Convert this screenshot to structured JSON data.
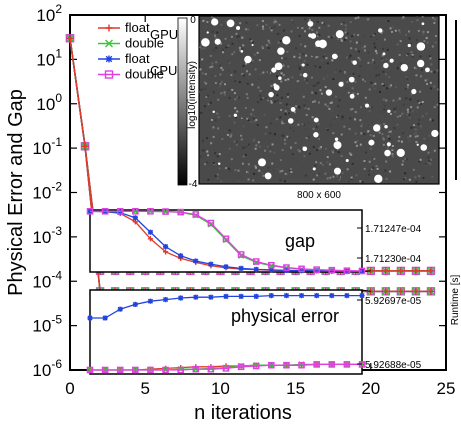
{
  "chart_data": {
    "type": "line",
    "xlabel": "n iterations",
    "ylabel": "Physical Error and Gap",
    "xlim": [
      0,
      25
    ],
    "ylim_log10": [
      -6,
      2
    ],
    "y_scale": "log",
    "x_ticks": [
      "0",
      "5",
      "10",
      "15",
      "20",
      "25"
    ],
    "y_ticks": [
      {
        "base": "10",
        "exp": "2"
      },
      {
        "base": "10",
        "exp": "1"
      },
      {
        "base": "10",
        "exp": "0"
      },
      {
        "base": "10",
        "exp": "-1"
      },
      {
        "base": "10",
        "exp": "-2"
      },
      {
        "base": "10",
        "exp": "-3"
      },
      {
        "base": "10",
        "exp": "-4"
      },
      {
        "base": "10",
        "exp": "-5"
      },
      {
        "base": "10",
        "exp": "-6"
      }
    ],
    "legend": {
      "group_labels": [
        "GPU",
        "CPU"
      ],
      "entries": [
        {
          "label": "float",
          "group": "GPU",
          "color": "#e0392b",
          "marker": "plus"
        },
        {
          "label": "double",
          "group": "GPU",
          "color": "#39c43c",
          "marker": "cross"
        },
        {
          "label": "float",
          "group": "CPU",
          "color": "#2244dd",
          "marker": "star"
        },
        {
          "label": "double",
          "group": "CPU",
          "color": "#e040e0",
          "marker": "square"
        }
      ]
    },
    "series": [
      {
        "metric": "gap",
        "x": [
          0,
          1,
          2,
          3,
          4,
          5,
          6,
          7,
          8,
          9,
          10,
          11,
          12,
          13,
          14,
          15,
          16,
          17,
          18,
          19,
          20,
          21,
          22,
          23,
          24
        ],
        "y": [
          30,
          0.11,
          0.000172,
          0.000171,
          0.000171,
          0.000171,
          0.000171,
          0.000171,
          0.000171,
          0.000171,
          0.000171,
          0.000171,
          0.000171,
          0.000171,
          0.000171,
          0.000171,
          0.000171,
          0.000171,
          0.000171,
          0.000171,
          0.000171,
          0.000171,
          0.000171,
          0.000171,
          0.000171
        ]
      },
      {
        "metric": "physical error",
        "x": [
          0,
          1,
          2,
          3,
          4,
          5,
          6,
          7,
          8,
          9,
          10,
          11,
          12,
          13,
          14,
          15,
          16,
          17,
          18,
          19,
          20,
          21,
          22,
          23,
          24
        ],
        "y": [
          30,
          0.11,
          5.92e-05,
          5.93e-05,
          5.93e-05,
          5.93e-05,
          5.93e-05,
          5.93e-05,
          5.93e-05,
          5.93e-05,
          5.93e-05,
          5.93e-05,
          5.93e-05,
          5.93e-05,
          5.93e-05,
          5.93e-05,
          5.93e-05,
          5.93e-05,
          5.93e-05,
          5.93e-05,
          5.93e-05,
          5.93e-05,
          5.93e-05,
          5.93e-05,
          5.93e-05
        ]
      }
    ],
    "inset_gap": {
      "label": "gap",
      "y_ticks": [
        "1.71247e-04",
        "1.71230e-04"
      ],
      "x": [
        1,
        2,
        3,
        4,
        5,
        6,
        7,
        8,
        9,
        10,
        11,
        12,
        13,
        14,
        15,
        16,
        17,
        18,
        19
      ],
      "series": [
        {
          "legend_index": 0,
          "y": [
            1.71247,
            1.712469,
            1.712462,
            1.71243,
            1.712365,
            1.712315,
            1.71229,
            1.712275,
            1.712262,
            1.712254,
            1.712249,
            1.712247,
            1.712245,
            1.712244,
            1.712243,
            1.712242,
            1.712241,
            1.71224,
            1.71224
          ]
        },
        {
          "legend_index": 1,
          "y": [
            1.71247,
            1.71247,
            1.71247,
            1.71247,
            1.71247,
            1.712469,
            1.712466,
            1.712455,
            1.71242,
            1.71236,
            1.7123,
            1.712275,
            1.712262,
            1.712254,
            1.712249,
            1.712246,
            1.712244,
            1.712242,
            1.712241
          ]
        },
        {
          "legend_index": 2,
          "y": [
            1.71247,
            1.712469,
            1.712465,
            1.712445,
            1.71239,
            1.712335,
            1.7123,
            1.71228,
            1.712268,
            1.712258,
            1.712252,
            1.712248,
            1.712246,
            1.712244,
            1.712243,
            1.712242,
            1.712241,
            1.71224,
            1.71224
          ]
        },
        {
          "legend_index": 3,
          "y": [
            1.71247,
            1.71247,
            1.71247,
            1.71247,
            1.71247,
            1.712469,
            1.712467,
            1.712458,
            1.712425,
            1.712365,
            1.712305,
            1.712278,
            1.712264,
            1.712255,
            1.71225,
            1.712247,
            1.712245,
            1.712243,
            1.712242
          ]
        }
      ]
    },
    "inset_error": {
      "label": "physical error",
      "y_ticks": [
        "5.92697e-05",
        "5.92688e-05"
      ],
      "x": [
        1,
        2,
        3,
        4,
        5,
        6,
        7,
        8,
        9,
        10,
        11,
        12,
        13,
        14,
        15,
        16,
        17,
        18,
        19
      ],
      "series": [
        {
          "legend_index": 0,
          "y": [
            5.92688,
            5.92688,
            5.92688,
            5.92688,
            5.926881,
            5.926882,
            5.926883,
            5.926884,
            5.926884,
            5.926885,
            5.926885,
            5.926886,
            5.926886,
            5.926886,
            5.926886,
            5.926887,
            5.926887,
            5.926887,
            5.926887
          ]
        },
        {
          "legend_index": 1,
          "y": [
            5.92688,
            5.92688,
            5.92688,
            5.92688,
            5.92688,
            5.92688,
            5.926881,
            5.926881,
            5.926882,
            5.926883,
            5.926885,
            5.926886,
            5.926886,
            5.926886,
            5.926887,
            5.926887,
            5.926887,
            5.926887,
            5.926887
          ]
        },
        {
          "legend_index": 2,
          "y": [
            5.926945,
            5.926945,
            5.926956,
            5.926962,
            5.926966,
            5.926968,
            5.92697,
            5.926971,
            5.926971,
            5.926972,
            5.926972,
            5.926972,
            5.926973,
            5.926973,
            5.926973,
            5.926973,
            5.926973,
            5.926973,
            5.926973
          ]
        },
        {
          "legend_index": 3,
          "y": [
            5.92688,
            5.92688,
            5.92688,
            5.92688,
            5.92688,
            5.92688,
            5.92688,
            5.926881,
            5.926881,
            5.926882,
            5.926884,
            5.926885,
            5.926886,
            5.926886,
            5.926886,
            5.926887,
            5.926887,
            5.926887,
            5.926887
          ]
        }
      ]
    },
    "image_inset": {
      "caption": "800 x 600",
      "colorbar_label": "log10(intensity)",
      "colorbar_ticks": [
        "0",
        "-4"
      ]
    },
    "right_fragment_label": "Runtime [s]"
  }
}
